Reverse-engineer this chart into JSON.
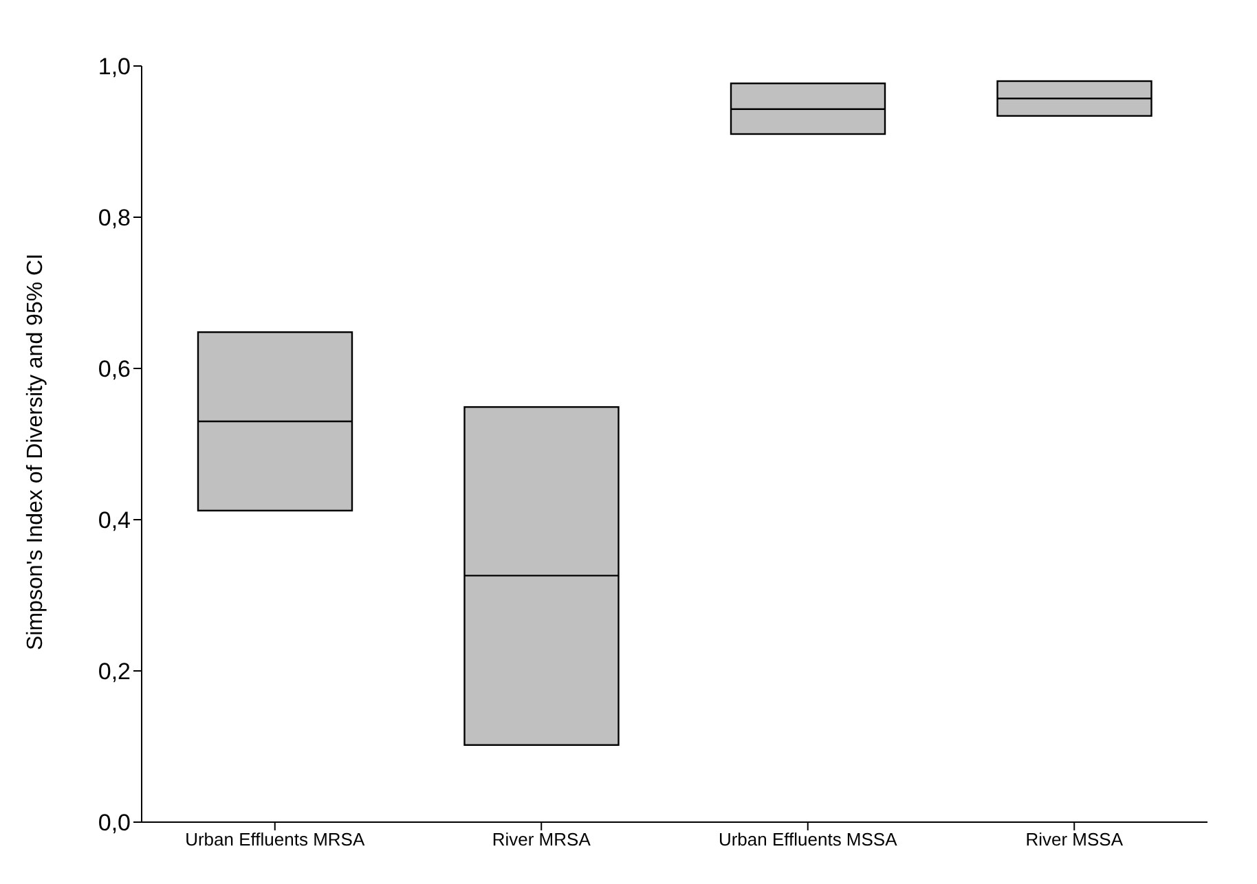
{
  "chart_data": {
    "type": "box",
    "ylabel": "Simpson's Index of Diversity and 95% CI",
    "categories": [
      "Urban Effluents MRSA",
      "River MRSA",
      "Urban Effluents MSSA",
      "River MSSA"
    ],
    "boxes": [
      {
        "low": 0.412,
        "q1": 0.412,
        "median": 0.53,
        "q3": 0.648,
        "high": 0.648
      },
      {
        "low": 0.102,
        "q1": 0.102,
        "median": 0.326,
        "q3": 0.549,
        "high": 0.549
      },
      {
        "low": 0.91,
        "q1": 0.91,
        "median": 0.943,
        "q3": 0.977,
        "high": 0.977
      },
      {
        "low": 0.934,
        "q1": 0.934,
        "median": 0.957,
        "q3": 0.98,
        "high": 0.98
      }
    ],
    "color": "#c0c0c0",
    "ylim": [
      0,
      1
    ],
    "yticks": [
      {
        "value": 0,
        "label": "0,0"
      },
      {
        "value": 0.2,
        "label": "0,2"
      },
      {
        "value": 0.4,
        "label": "0,4"
      },
      {
        "value": 0.6,
        "label": "0,6"
      },
      {
        "value": 0.8,
        "label": "0,8"
      },
      {
        "value": 1,
        "label": "1,0"
      }
    ],
    "grid": false,
    "legend": false
  }
}
